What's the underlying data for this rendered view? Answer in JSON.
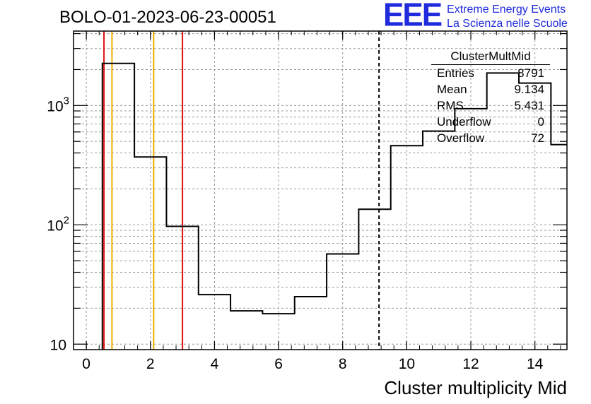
{
  "header": {
    "run_title": "BOLO-01-2023-06-23-00051",
    "logo_mark": "EEE",
    "logo_line1": "Extreme Energy Events",
    "logo_line2": "La Scienza nelle Scuole"
  },
  "stats_box": {
    "title": "ClusterMultMid",
    "rows": [
      {
        "label": "Entries",
        "value": "8791"
      },
      {
        "label": "Mean",
        "value": "9.134"
      },
      {
        "label": "RMS",
        "value": "5.431"
      },
      {
        "label": "Underflow",
        "value": "0"
      },
      {
        "label": "Overflow",
        "value": "72"
      }
    ]
  },
  "colors": {
    "histogram": "#000000",
    "red_line": "#e01010",
    "orange_line": "#f0b000",
    "mean_line": "#000000",
    "logo": "#1f2bdc"
  },
  "chart_data": {
    "type": "histogram",
    "xlabel": "Cluster multiplicity Mid",
    "ylabel": "",
    "xlim": [
      -0.4,
      15.0
    ],
    "ylim": [
      9,
      4200
    ],
    "yscale": "log",
    "grid": true,
    "x_ticks": [
      0,
      2,
      4,
      6,
      8,
      10,
      12,
      14
    ],
    "y_ticks": [
      {
        "value": 10,
        "label": "10"
      },
      {
        "value": 100,
        "label": "10",
        "sup": "2"
      },
      {
        "value": 1000,
        "label": "10",
        "sup": "3"
      }
    ],
    "bin_edges": [
      0.5,
      1.5,
      2.5,
      3.5,
      4.5,
      5.5,
      6.5,
      7.5,
      8.5,
      9.5,
      10.5,
      11.5,
      12.5,
      13.5,
      14.5,
      15.0
    ],
    "counts": [
      2250,
      370,
      97,
      26,
      19,
      18,
      25,
      57,
      135,
      460,
      610,
      940,
      1870,
      1540,
      470
    ],
    "vertical_lines": [
      {
        "x": 0.55,
        "style": "red"
      },
      {
        "x": 0.8,
        "style": "orange"
      },
      {
        "x": 2.1,
        "style": "orange"
      },
      {
        "x": 3.0,
        "style": "red"
      },
      {
        "x": 9.134,
        "style": "mean-dashed"
      }
    ]
  }
}
